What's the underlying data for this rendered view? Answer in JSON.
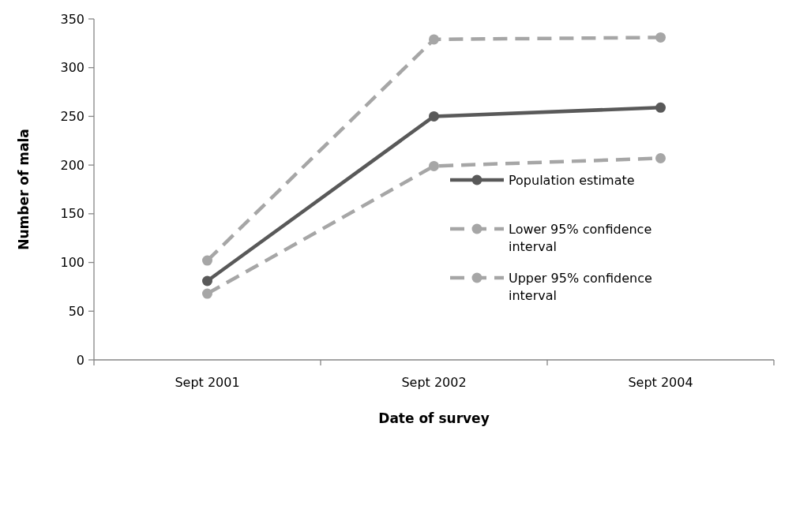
{
  "chart_data": {
    "type": "line",
    "xlabel": "Date of survey",
    "ylabel": "Number of mala",
    "categories": [
      "Sept 2001",
      "Sept 2002",
      "Sept 2004"
    ],
    "series": [
      {
        "name": "Population estimate",
        "color": "#595959",
        "values": [
          81,
          250,
          259
        ],
        "line_style": "solid"
      },
      {
        "name": "Lower 95% confidence interval",
        "color": "#a6a6a6",
        "values": [
          68,
          199,
          207
        ],
        "line_style": "dashed"
      },
      {
        "name": "Upper 95% confidence interval",
        "color": "#a6a6a6",
        "values": [
          102,
          329,
          331
        ],
        "line_style": "dashed"
      }
    ],
    "ylim": [
      0,
      350
    ],
    "yticks": [
      0,
      50,
      100,
      150,
      200,
      250,
      300,
      350
    ],
    "grid": false,
    "legend": "right",
    "marker": "circle"
  }
}
